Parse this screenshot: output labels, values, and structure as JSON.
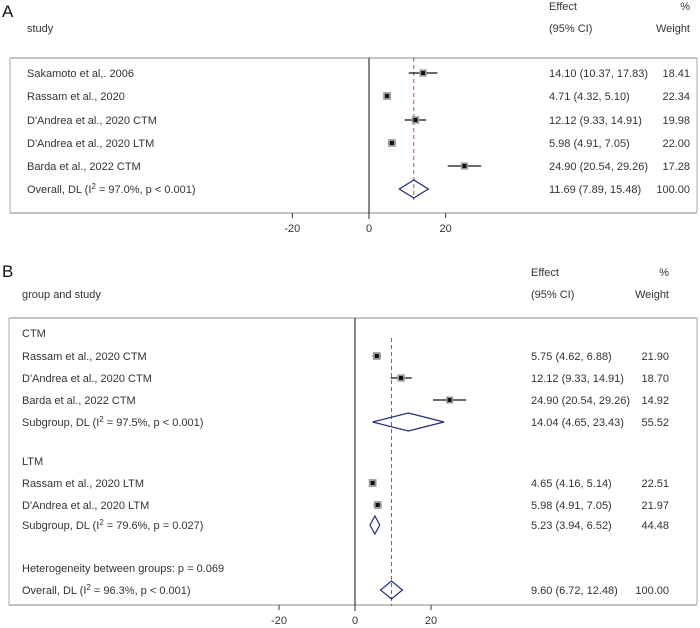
{
  "chart_data": [
    {
      "type": "forest",
      "panel_label": "A",
      "xlim": [
        -30,
        30
      ],
      "ticks": [
        -20,
        0,
        20
      ],
      "null_line": 0,
      "headers": {
        "study": "study",
        "effect": "Effect",
        "ci": "(95% CI)",
        "pct": "%",
        "weight": "Weight"
      },
      "studies": [
        {
          "label": "Sakamoto et al,. 2006",
          "effect": 14.1,
          "lo": 10.37,
          "hi": 17.83,
          "ci_text": "14.10 (10.37, 17.83)",
          "weight": "18.41"
        },
        {
          "label": "Rassam et al., 2020",
          "effect": 4.71,
          "lo": 4.32,
          "hi": 5.1,
          "ci_text": "4.71 (4.32, 5.10)",
          "weight": "22.34"
        },
        {
          "label": "D'Andrea et al., 2020 CTM",
          "effect": 12.12,
          "lo": 9.33,
          "hi": 14.91,
          "ci_text": "12.12 (9.33, 14.91)",
          "weight": "19.98"
        },
        {
          "label": "D'Andrea et al., 2020 LTM",
          "effect": 5.98,
          "lo": 4.91,
          "hi": 7.05,
          "ci_text": "5.98 (4.91, 7.05)",
          "weight": "22.00"
        },
        {
          "label": "Barda et al., 2022 CTM",
          "effect": 24.9,
          "lo": 20.54,
          "hi": 29.26,
          "ci_text": "24.90 (20.54, 29.26)",
          "weight": "17.28"
        }
      ],
      "overall": {
        "label_pre": "Overall, DL (I",
        "label_sup": "2",
        "label_post": " = 97.0%, p < 0.001)",
        "effect": 11.69,
        "lo": 7.89,
        "hi": 15.48,
        "ci_text": "11.69 (7.89, 15.48)",
        "weight": "100.00"
      }
    },
    {
      "type": "forest",
      "panel_label": "B",
      "xlim": [
        -30,
        30
      ],
      "ticks": [
        -20,
        0,
        20
      ],
      "null_line": 0,
      "headers": {
        "study": "group and study",
        "effect": "Effect",
        "ci": "(95% CI)",
        "pct": "%",
        "weight": "Weight"
      },
      "groups": [
        {
          "name": "CTM",
          "studies": [
            {
              "label": "Rassam et al., 2020 CTM",
              "effect": 5.75,
              "lo": 4.62,
              "hi": 6.88,
              "ci_text": "5.75 (4.62, 6.88)",
              "weight": "21.90"
            },
            {
              "label": "D'Andrea et al., 2020 CTM",
              "effect": 12.12,
              "lo": 9.33,
              "hi": 14.91,
              "ci_text": "12.12 (9.33, 14.91)",
              "weight": "18.70"
            },
            {
              "label": "Barda et al., 2022 CTM",
              "effect": 24.9,
              "lo": 20.54,
              "hi": 29.26,
              "ci_text": "24.90 (20.54, 29.26)",
              "weight": "14.92"
            }
          ],
          "subgroup": {
            "label_pre": "Subgroup, DL (I",
            "label_sup": "2",
            "label_post": " = 97.5%, p < 0.001)",
            "effect": 14.04,
            "lo": 4.65,
            "hi": 23.43,
            "ci_text": "14.04 (4.65, 23.43)",
            "weight": "55.52"
          }
        },
        {
          "name": "LTM",
          "studies": [
            {
              "label": "Rassam et al., 2020 LTM",
              "effect": 4.65,
              "lo": 4.16,
              "hi": 5.14,
              "ci_text": "4.65 (4.16, 5.14)",
              "weight": "22.51"
            },
            {
              "label": "D'Andrea et al., 2020 LTM",
              "effect": 5.98,
              "lo": 4.91,
              "hi": 7.05,
              "ci_text": "5.98 (4.91, 7.05)",
              "weight": "21.97"
            }
          ],
          "subgroup": {
            "label_pre": "Subgroup, DL (I",
            "label_sup": "2",
            "label_post": " = 79.6%, p = 0.027)",
            "effect": 5.23,
            "lo": 3.94,
            "hi": 6.52,
            "ci_text": "5.23 (3.94, 6.52)",
            "weight": "44.48"
          }
        }
      ],
      "heterogeneity_text": "Heterogeneity between groups: p = 0.069",
      "overall": {
        "label_pre": "Overall, DL (I",
        "label_sup": "2",
        "label_post": " = 96.3%, p < 0.001)",
        "effect": 9.6,
        "lo": 6.72,
        "hi": 12.48,
        "ci_text": "9.60 (6.72, 12.48)",
        "weight": "100.00"
      }
    }
  ]
}
